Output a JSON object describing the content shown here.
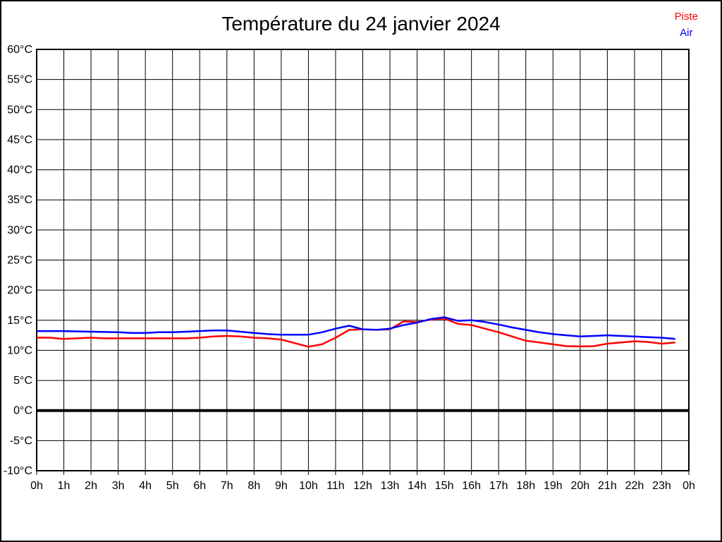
{
  "header": {
    "title": "Température du 24 janvier 2024"
  },
  "legend": {
    "items": [
      {
        "label": "Piste",
        "color": "#ff0000"
      },
      {
        "label": "Air",
        "color": "#0000ff"
      }
    ]
  },
  "chart_data": {
    "type": "line",
    "title": "Température du 24 janvier 2024",
    "xlabel": "",
    "ylabel": "",
    "x_unit": "hours",
    "xlim": [
      0,
      24
    ],
    "ylim": [
      -10,
      60
    ],
    "y_tick_step": 5,
    "grid": true,
    "zero_line_at": 0,
    "legend_position": "top-right",
    "axis_color": "#000000",
    "grid_color": "#000000",
    "background": "#ffffff",
    "x_tick_labels": [
      "0h",
      "1h",
      "2h",
      "3h",
      "4h",
      "5h",
      "6h",
      "7h",
      "8h",
      "9h",
      "10h",
      "11h",
      "12h",
      "13h",
      "14h",
      "15h",
      "16h",
      "17h",
      "18h",
      "19h",
      "20h",
      "21h",
      "22h",
      "23h",
      "0h"
    ],
    "y_tick_labels": [
      "60°C",
      "55°C",
      "50°C",
      "45°C",
      "40°C",
      "35°C",
      "30°C",
      "25°C",
      "20°C",
      "15°C",
      "10°C",
      "5°C",
      "0°C",
      "-5°C",
      "-10°C"
    ],
    "x": [
      0,
      0.5,
      1,
      1.5,
      2,
      2.5,
      3,
      3.5,
      4,
      4.5,
      5,
      5.5,
      6,
      6.5,
      7,
      7.5,
      8,
      8.5,
      9,
      9.5,
      10,
      10.5,
      11,
      11.5,
      12,
      12.5,
      13,
      13.5,
      14,
      14.5,
      15,
      15.5,
      16,
      16.5,
      17,
      17.5,
      18,
      18.5,
      19,
      19.5,
      20,
      20.5,
      21,
      21.5,
      22,
      22.5,
      23,
      23.5
    ],
    "series": [
      {
        "name": "Piste",
        "color": "#ff0000",
        "values": [
          12.1,
          12.1,
          11.9,
          12.0,
          12.1,
          12.0,
          12.0,
          12.0,
          12.0,
          12.0,
          12.0,
          12.0,
          12.1,
          12.3,
          12.4,
          12.3,
          12.1,
          12.0,
          11.8,
          11.2,
          10.6,
          11.0,
          12.1,
          13.4,
          13.5,
          13.4,
          13.5,
          14.8,
          14.7,
          15.1,
          15.3,
          14.4,
          14.2,
          13.6,
          13.0,
          12.3,
          11.6,
          11.3,
          11.0,
          10.7,
          10.65,
          10.7,
          11.1,
          11.3,
          11.5,
          11.4,
          11.1,
          11.3
        ]
      },
      {
        "name": "Air",
        "color": "#0000ff",
        "values": [
          13.2,
          13.2,
          13.2,
          13.15,
          13.1,
          13.05,
          13.0,
          12.9,
          12.9,
          13.0,
          13.0,
          13.1,
          13.2,
          13.3,
          13.3,
          13.1,
          12.9,
          12.7,
          12.6,
          12.6,
          12.6,
          13.0,
          13.6,
          14.1,
          13.5,
          13.4,
          13.6,
          14.2,
          14.6,
          15.2,
          15.5,
          14.9,
          15.0,
          14.7,
          14.3,
          13.8,
          13.4,
          13.0,
          12.7,
          12.5,
          12.3,
          12.4,
          12.5,
          12.4,
          12.3,
          12.2,
          12.1,
          11.9
        ]
      }
    ]
  }
}
